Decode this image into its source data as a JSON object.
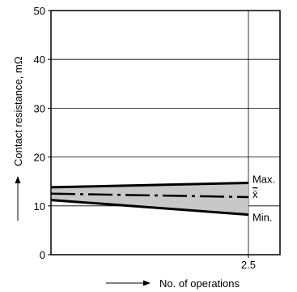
{
  "chart_data": {
    "type": "area",
    "title": "",
    "xlabel": "No. of operations",
    "ylabel": "Contact resistance, mΩ",
    "xlim": [
      0,
      2.9
    ],
    "ylim": [
      0,
      50
    ],
    "y_ticks": [
      0,
      10,
      20,
      30,
      40,
      50
    ],
    "x_ticks": [
      2.5
    ],
    "x_tick_labels": [
      "2.5"
    ],
    "grid": true,
    "series": [
      {
        "name": "Max.",
        "x": [
          0,
          2.5
        ],
        "y": [
          13.8,
          14.7
        ]
      },
      {
        "name": "x̄",
        "x": [
          0,
          2.5
        ],
        "y": [
          12.5,
          11.8
        ]
      },
      {
        "name": "Min.",
        "x": [
          0,
          2.5
        ],
        "y": [
          11.2,
          8.2
        ]
      }
    ],
    "band_color": "#c8c8c8",
    "line_color": "#000000"
  }
}
